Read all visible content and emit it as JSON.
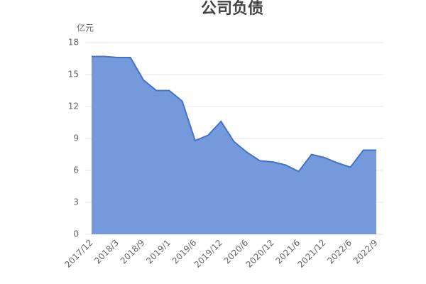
{
  "chart_data": {
    "type": "area",
    "title": "公司负债",
    "y_unit": "亿元",
    "categories": [
      "2017/12",
      null,
      "2018/3",
      null,
      "2018/9",
      null,
      "2019/1",
      null,
      "2019/6",
      null,
      "2019/12",
      null,
      "2020/6",
      null,
      "2020/12",
      null,
      "2021/6",
      null,
      "2021/12",
      null,
      "2022/6",
      null,
      "2022/9"
    ],
    "values": [
      16.7,
      16.7,
      16.6,
      16.6,
      14.5,
      13.5,
      13.5,
      12.5,
      8.8,
      9.3,
      10.6,
      8.7,
      7.7,
      6.9,
      6.8,
      6.5,
      5.9,
      7.5,
      7.2,
      6.7,
      6.3,
      7.9,
      7.9
    ],
    "color": "#4472c4",
    "fill": "#7499dc",
    "ylim": [
      0,
      18
    ],
    "yticks": [
      0,
      3,
      6,
      9,
      12,
      15,
      18
    ],
    "grid": true
  }
}
